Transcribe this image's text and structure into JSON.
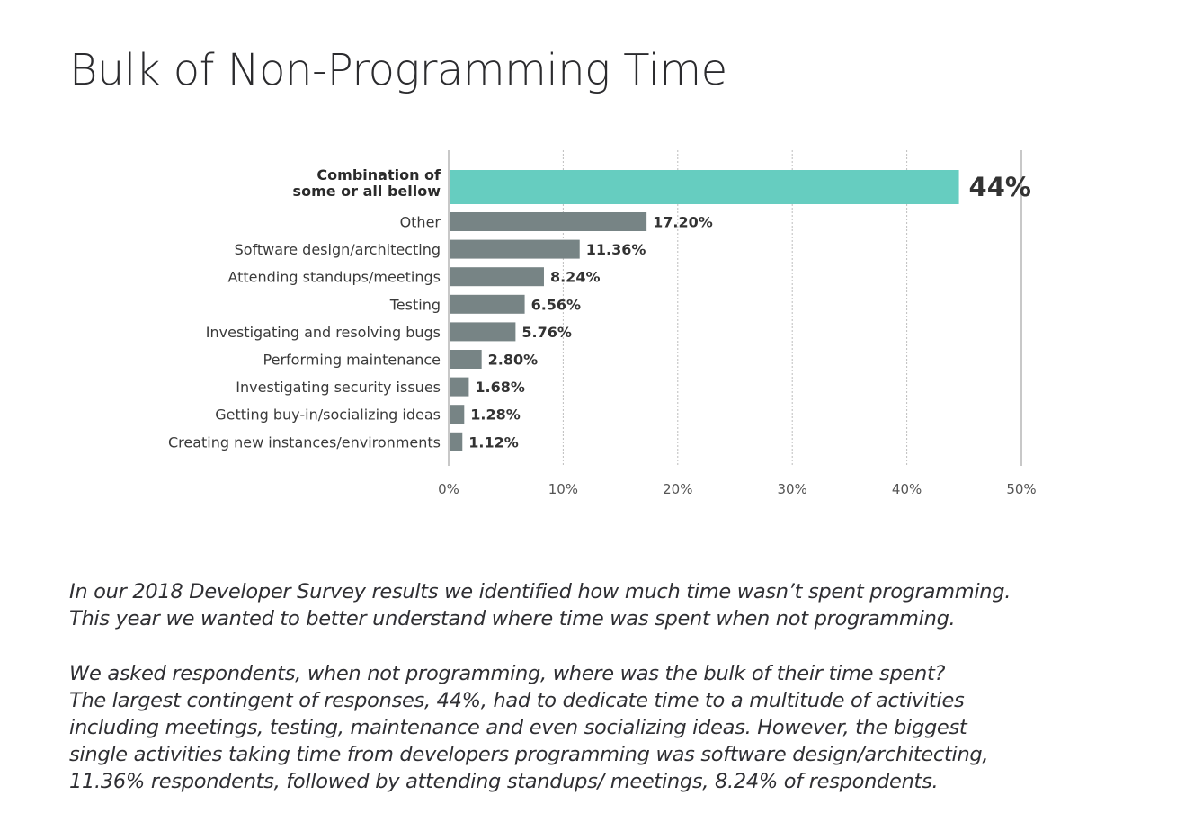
{
  "page": {
    "title": "Bulk of Non-Programming Time",
    "paragraphs": [
      "In our 2018 Developer Survey results we identified how much time wasn’t spent programming.\nThis year we wanted to better understand where time was spent when not programming.",
      "We asked respondents, when not programming, where was the bulk of their time spent?\nThe largest contingent of responses, 44%, had to dedicate time to a multitude of activities\nincluding meetings, testing, maintenance and even socializing ideas. However, the biggest\nsingle activities taking time from developers programming was software design/architecting,\n11.36% respondents, followed by attending standups/ meetings, 8.24% of respondents."
    ]
  },
  "chart_data": {
    "type": "bar",
    "orientation": "horizontal",
    "title": "Bulk of Non-Programming Time",
    "xlabel": "",
    "ylabel": "",
    "xlim": [
      0,
      50
    ],
    "x_ticks": [
      0,
      10,
      20,
      30,
      40,
      50
    ],
    "x_tick_labels": [
      "0%",
      "10%",
      "20%",
      "30%",
      "40%",
      "50%"
    ],
    "grid": "vertical dotted",
    "legend": "none",
    "colors": {
      "highlight": "#66cdc0",
      "default": "#778485",
      "axis": "#bbbbbb",
      "grid": "#bdbdbd",
      "text": "#333333"
    },
    "categories": [
      [
        "Combination of",
        "some or all bellow"
      ],
      [
        "Other"
      ],
      [
        "Software design/architecting"
      ],
      [
        "Attending standups/meetings"
      ],
      [
        "Testing"
      ],
      [
        "Investigating and resolving bugs"
      ],
      [
        "Performing maintenance"
      ],
      [
        "Investigating security issues"
      ],
      [
        "Getting buy-in/socializing ideas"
      ],
      [
        "Creating new instances/environments"
      ]
    ],
    "values": [
      44,
      17.2,
      11.36,
      8.24,
      6.56,
      5.76,
      2.8,
      1.68,
      1.28,
      1.12
    ],
    "data_labels": [
      "44%",
      "17.20%",
      "11.36%",
      "8.24%",
      "6.56%",
      "5.76%",
      "2.80%",
      "1.68%",
      "1.28%",
      "1.12%"
    ],
    "highlighted_index": 0
  }
}
